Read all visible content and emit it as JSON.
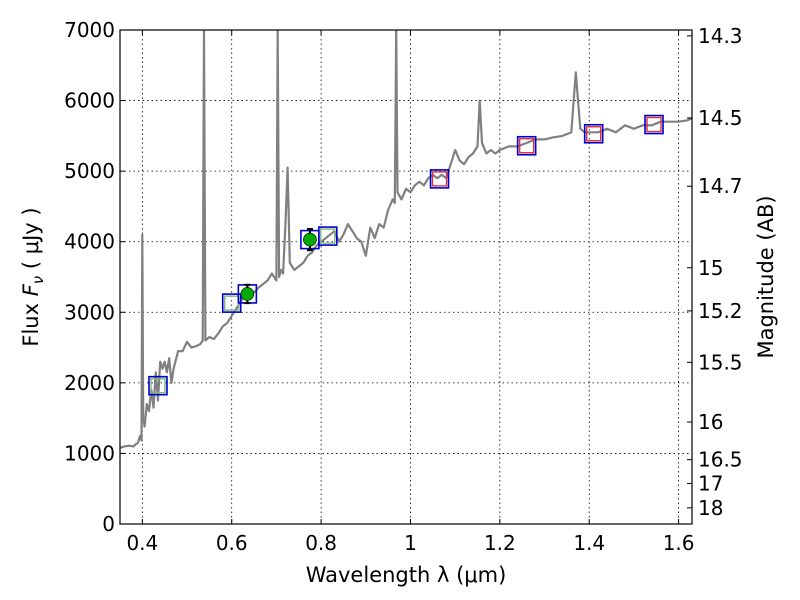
{
  "chart_data": {
    "type": "line",
    "title": "",
    "xlabel": "Wavelength  λ (μm)",
    "ylabel": "Flux  F_ν  ( μJy )",
    "ylabel_parts": {
      "pre": "Flux  ",
      "var": "F",
      "sub": "ν",
      "post": "  ( μJy )"
    },
    "y2label": "Magnitude (AB)",
    "xlim": [
      0.35,
      1.63
    ],
    "ylim": [
      0,
      7000
    ],
    "grid": true,
    "grid_style": "dotted",
    "xticks": [
      0.4,
      0.6,
      0.8,
      1.0,
      1.2,
      1.4,
      1.6
    ],
    "xtick_labels": [
      "0.4",
      "0.6",
      "0.8",
      "1",
      "1.2",
      "1.4",
      "1.6"
    ],
    "yticks": [
      0,
      1000,
      2000,
      3000,
      4000,
      5000,
      6000,
      7000
    ],
    "ytick_labels": [
      "0",
      "1000",
      "2000",
      "3000",
      "4000",
      "5000",
      "6000",
      "7000"
    ],
    "y2ticks": [
      {
        "label": "14.3",
        "flux": 6917
      },
      {
        "label": "14.5",
        "flux": 5754
      },
      {
        "label": "14.7",
        "flux": 4786
      },
      {
        "label": "15",
        "flux": 3631
      },
      {
        "label": "15.2",
        "flux": 3020
      },
      {
        "label": "15.5",
        "flux": 2291
      },
      {
        "label": "16",
        "flux": 1445
      },
      {
        "label": "16.5",
        "flux": 912
      },
      {
        "label": "17",
        "flux": 575
      },
      {
        "label": "18",
        "flux": 229
      }
    ],
    "colors": {
      "spectrum": "#808080",
      "obs_box": "#0000cc",
      "model_box": "#e0303c",
      "model_box_optical": "#7fb87f",
      "photometry": "#00aa00"
    },
    "series": [
      {
        "kind": "model_spectrum",
        "points": [
          [
            0.35,
            1080
          ],
          [
            0.36,
            1100
          ],
          [
            0.37,
            1110
          ],
          [
            0.38,
            1100
          ],
          [
            0.385,
            1130
          ],
          [
            0.39,
            1150
          ],
          [
            0.395,
            1250
          ],
          [
            0.398,
            1180
          ],
          [
            0.4,
            4100
          ],
          [
            0.402,
            1500
          ],
          [
            0.405,
            1380
          ],
          [
            0.41,
            1700
          ],
          [
            0.415,
            1600
          ],
          [
            0.42,
            1900
          ],
          [
            0.425,
            1650
          ],
          [
            0.43,
            2150
          ],
          [
            0.435,
            1750
          ],
          [
            0.44,
            2300
          ],
          [
            0.445,
            2200
          ],
          [
            0.45,
            2300
          ],
          [
            0.455,
            2150
          ],
          [
            0.46,
            2350
          ],
          [
            0.465,
            2000
          ],
          [
            0.47,
            2200
          ],
          [
            0.48,
            2450
          ],
          [
            0.49,
            2450
          ],
          [
            0.5,
            2580
          ],
          [
            0.51,
            2500
          ],
          [
            0.52,
            2520
          ],
          [
            0.53,
            2550
          ],
          [
            0.535,
            2600
          ],
          [
            0.538,
            7000
          ],
          [
            0.541,
            2600
          ],
          [
            0.55,
            2650
          ],
          [
            0.56,
            2620
          ],
          [
            0.57,
            2700
          ],
          [
            0.58,
            2800
          ],
          [
            0.59,
            2850
          ],
          [
            0.6,
            2950
          ],
          [
            0.61,
            3050
          ],
          [
            0.62,
            3150
          ],
          [
            0.63,
            3250
          ],
          [
            0.64,
            3300
          ],
          [
            0.65,
            3280
          ],
          [
            0.66,
            3350
          ],
          [
            0.67,
            3400
          ],
          [
            0.68,
            3450
          ],
          [
            0.69,
            3550
          ],
          [
            0.7,
            3450
          ],
          [
            0.703,
            7000
          ],
          [
            0.706,
            3500
          ],
          [
            0.71,
            3600
          ],
          [
            0.715,
            3550
          ],
          [
            0.72,
            4200
          ],
          [
            0.725,
            5050
          ],
          [
            0.73,
            3700
          ],
          [
            0.74,
            3600
          ],
          [
            0.75,
            3650
          ],
          [
            0.76,
            3700
          ],
          [
            0.77,
            3800
          ],
          [
            0.78,
            3850
          ],
          [
            0.79,
            3950
          ],
          [
            0.8,
            4000
          ],
          [
            0.81,
            4050
          ],
          [
            0.82,
            4100
          ],
          [
            0.83,
            4150
          ],
          [
            0.84,
            4000
          ],
          [
            0.85,
            4100
          ],
          [
            0.86,
            4250
          ],
          [
            0.87,
            4150
          ],
          [
            0.88,
            4050
          ],
          [
            0.89,
            4000
          ],
          [
            0.9,
            3800
          ],
          [
            0.91,
            4200
          ],
          [
            0.92,
            4050
          ],
          [
            0.93,
            4250
          ],
          [
            0.94,
            4200
          ],
          [
            0.95,
            4450
          ],
          [
            0.96,
            4600
          ],
          [
            0.965,
            4550
          ],
          [
            0.968,
            7000
          ],
          [
            0.971,
            4700
          ],
          [
            0.98,
            4600
          ],
          [
            0.99,
            4750
          ],
          [
            1.0,
            4700
          ],
          [
            1.01,
            4800
          ],
          [
            1.02,
            4850
          ],
          [
            1.03,
            4800
          ],
          [
            1.04,
            4900
          ],
          [
            1.05,
            4950
          ],
          [
            1.06,
            4900
          ],
          [
            1.07,
            4950
          ],
          [
            1.08,
            4900
          ],
          [
            1.09,
            5100
          ],
          [
            1.1,
            5300
          ],
          [
            1.11,
            5150
          ],
          [
            1.12,
            5100
          ],
          [
            1.13,
            5200
          ],
          [
            1.14,
            5250
          ],
          [
            1.15,
            5350
          ],
          [
            1.155,
            6000
          ],
          [
            1.16,
            5400
          ],
          [
            1.17,
            5250
          ],
          [
            1.18,
            5300
          ],
          [
            1.19,
            5250
          ],
          [
            1.2,
            5300
          ],
          [
            1.22,
            5350
          ],
          [
            1.24,
            5350
          ],
          [
            1.26,
            5400
          ],
          [
            1.28,
            5450
          ],
          [
            1.3,
            5450
          ],
          [
            1.32,
            5480
          ],
          [
            1.34,
            5500
          ],
          [
            1.36,
            5550
          ],
          [
            1.37,
            6400
          ],
          [
            1.38,
            5600
          ],
          [
            1.39,
            5550
          ],
          [
            1.4,
            5550
          ],
          [
            1.42,
            5550
          ],
          [
            1.44,
            5600
          ],
          [
            1.46,
            5550
          ],
          [
            1.48,
            5650
          ],
          [
            1.5,
            5600
          ],
          [
            1.52,
            5650
          ],
          [
            1.54,
            5650
          ],
          [
            1.56,
            5700
          ],
          [
            1.58,
            5700
          ],
          [
            1.6,
            5700
          ],
          [
            1.62,
            5720
          ],
          [
            1.63,
            5750
          ]
        ]
      },
      {
        "kind": "observed_boxes",
        "points": [
          [
            0.435,
            1960
          ],
          [
            0.6,
            3130
          ],
          [
            0.635,
            3260
          ],
          [
            0.775,
            4030
          ],
          [
            0.815,
            4080
          ],
          [
            1.065,
            4890
          ],
          [
            1.26,
            5360
          ],
          [
            1.41,
            5530
          ],
          [
            1.545,
            5660
          ]
        ]
      },
      {
        "kind": "model_boxes",
        "points": [
          [
            0.435,
            1960
          ],
          [
            0.6,
            3130
          ],
          [
            0.815,
            4080
          ],
          [
            1.065,
            4890
          ],
          [
            1.26,
            5360
          ],
          [
            1.41,
            5530
          ],
          [
            1.545,
            5660
          ]
        ]
      },
      {
        "kind": "photometry_points",
        "points": [
          {
            "x": 0.635,
            "y": 3260,
            "err": 130
          },
          {
            "x": 0.775,
            "y": 4030,
            "err": 150
          }
        ]
      }
    ]
  }
}
